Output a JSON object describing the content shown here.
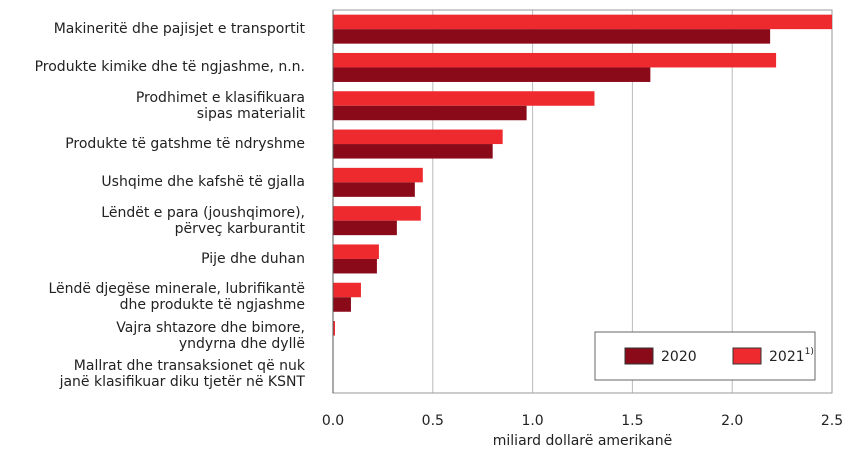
{
  "chart_data": {
    "type": "hbar",
    "categories": [
      "Makineritë dhe pajisjet e transportit",
      "Produkte kimike dhe të ngjashme, n.n.",
      "Prodhimet e klasifikuara\nsipas materialit",
      "Produkte të gatshme të ndryshme",
      "Ushqime dhe kafshë të gjalla",
      "Lëndët e para (joushqimore),\npërveç karburantit",
      "Pije dhe duhan",
      "Lëndë djegëse minerale, lubrifikantë\ndhe produkte të ngjashme",
      "Vajra shtazore dhe bimore,\nyndyrna dhe dyllë",
      "Mallrat dhe transaksionet që nuk\njanë klasifikuar diku tjetër në KSNT"
    ],
    "series": [
      {
        "name": "2020",
        "color": "#8b0a1a",
        "values": [
          2.19,
          1.59,
          0.97,
          0.8,
          0.41,
          0.32,
          0.22,
          0.09,
          0,
          0
        ]
      },
      {
        "name": "2021",
        "note": "1)",
        "color": "#ee2a2f",
        "values": [
          2.5,
          2.22,
          1.31,
          0.85,
          0.45,
          0.44,
          0.23,
          0.14,
          0.01,
          0
        ]
      }
    ],
    "xlabel": "miliard dollarë amerikanë",
    "xlim": [
      0,
      2.5
    ],
    "xticks": [
      {
        "value": 0,
        "label": "0.0"
      },
      0.5,
      {
        "value": 1,
        "label": "1.0"
      },
      1.5,
      {
        "value": 2,
        "label": "2.0"
      },
      2.5
    ],
    "grid": true,
    "legend": "lower right"
  }
}
